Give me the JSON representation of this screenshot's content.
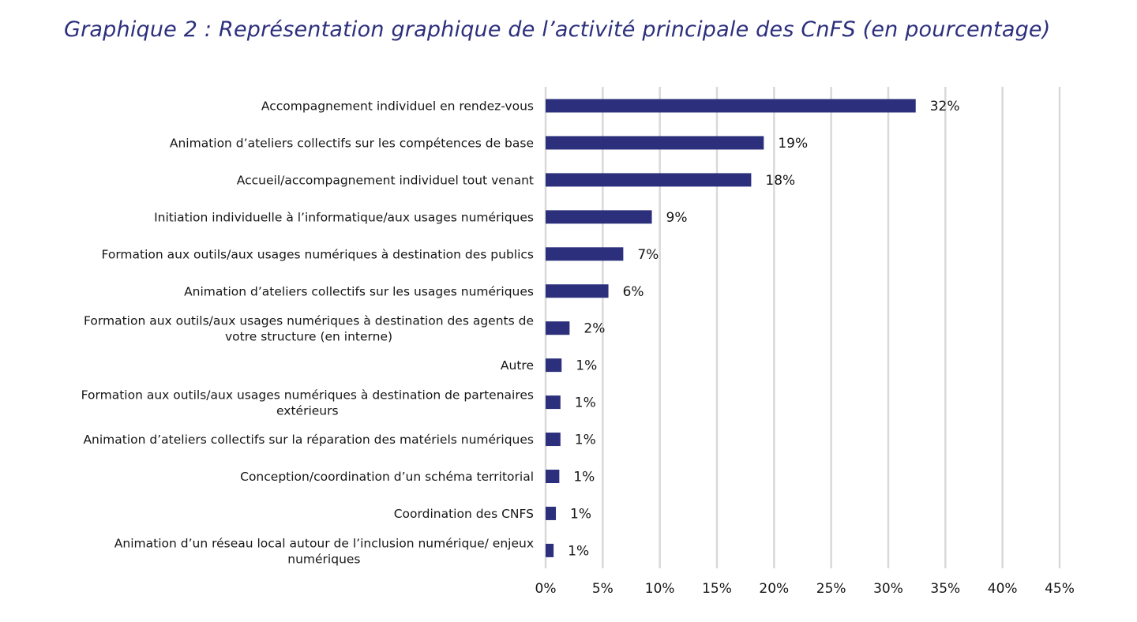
{
  "title": "Graphique 2 : Représentation graphique de l’activité principale des CnFS (en pourcentage)",
  "colors": {
    "title": "#2c2f7c",
    "bar": "#2c2f7c",
    "grid": "#d9d9d9",
    "text": "#161616"
  },
  "chart_data": {
    "type": "bar",
    "orientation": "horizontal",
    "title": "Graphique 2 : Représentation graphique de l’activité principale des CnFS (en pourcentage)",
    "categories": [
      [
        "Accompagnement individuel en rendez-vous"
      ],
      [
        "Animation d’ateliers collectifs sur les compétences de base"
      ],
      [
        "Accueil/accompagnement individuel tout venant"
      ],
      [
        "Initiation individuelle à l’informatique/aux usages numériques"
      ],
      [
        "Formation aux outils/aux usages numériques à destination des publics"
      ],
      [
        "Animation d’ateliers collectifs sur les usages numériques"
      ],
      [
        "Formation aux outils/aux usages numériques à destination des agents de",
        "votre structure (en interne)"
      ],
      [
        "Autre"
      ],
      [
        "Formation aux outils/aux usages numériques à destination de partenaires",
        "extérieurs"
      ],
      [
        "Animation d’ateliers collectifs sur la réparation des matériels numériques"
      ],
      [
        "Conception/coordination d’un schéma territorial"
      ],
      [
        "Coordination des CNFS"
      ],
      [
        "Animation d’un réseau local autour de l’inclusion numérique/ enjeux",
        "numériques"
      ]
    ],
    "values": [
      32.4,
      19.1,
      18.0,
      9.3,
      6.8,
      5.5,
      2.1,
      1.4,
      1.3,
      1.3,
      1.2,
      0.9,
      0.7
    ],
    "data_labels": [
      "32%",
      "19%",
      "18%",
      "9%",
      "7%",
      "6%",
      "2%",
      "1%",
      "1%",
      "1%",
      "1%",
      "1%",
      "1%"
    ],
    "xlim": [
      0,
      45
    ],
    "xticks": [
      0,
      5,
      10,
      15,
      20,
      25,
      30,
      35,
      40,
      45
    ],
    "xtick_labels": [
      "0%",
      "5%",
      "10%",
      "15%",
      "20%",
      "25%",
      "30%",
      "35%",
      "40%",
      "45%"
    ],
    "grid": true,
    "legend": "none"
  }
}
